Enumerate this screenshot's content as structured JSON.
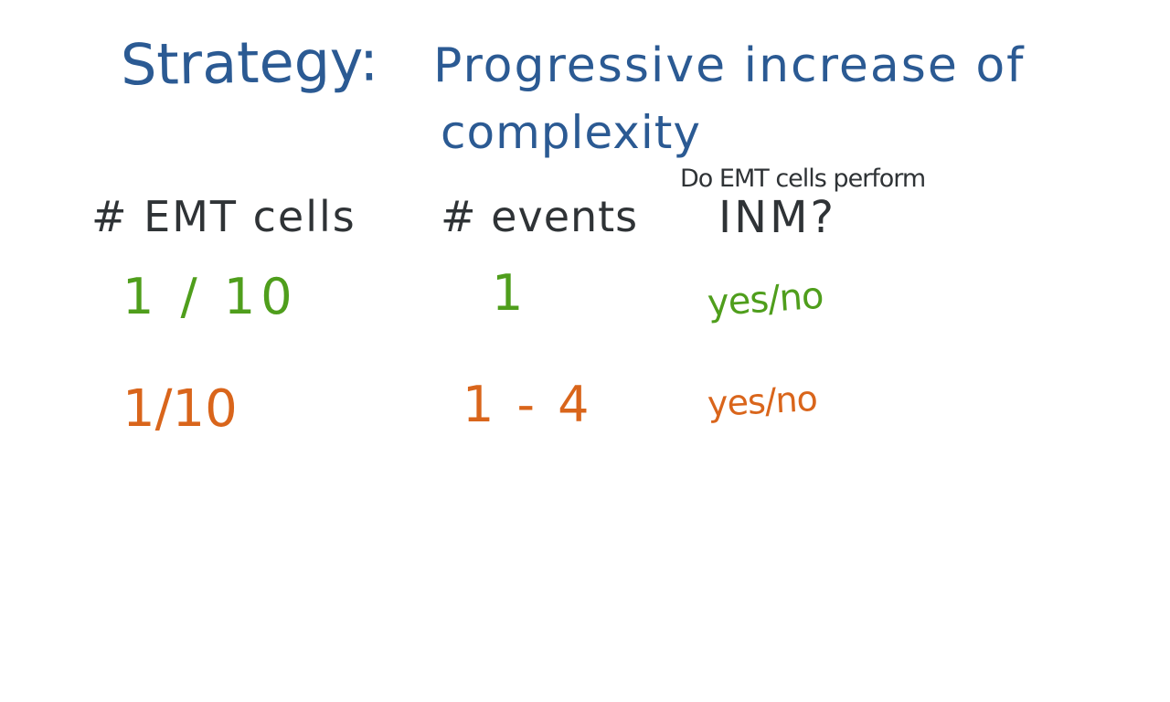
{
  "strategy": {
    "label": "Strategy:",
    "text_line1": "Progressive increase of",
    "text_line2": "complexity"
  },
  "columns": {
    "emt_cells": "# EMT cells",
    "events": "# events",
    "question_small": "Do EMT cells perform",
    "question_big": "INM?"
  },
  "rows": [
    {
      "emt_cells": "1 / 10",
      "events": "1",
      "answer": "yes/no",
      "color": "#4f9e1c"
    },
    {
      "emt_cells": "1/10",
      "events": "1 - 4",
      "answer": "yes/no",
      "color": "#d9651b"
    }
  ],
  "colors": {
    "title": "#2b5a93",
    "header": "#2f3336",
    "row1": "#4f9e1c",
    "row2": "#d9651b"
  }
}
